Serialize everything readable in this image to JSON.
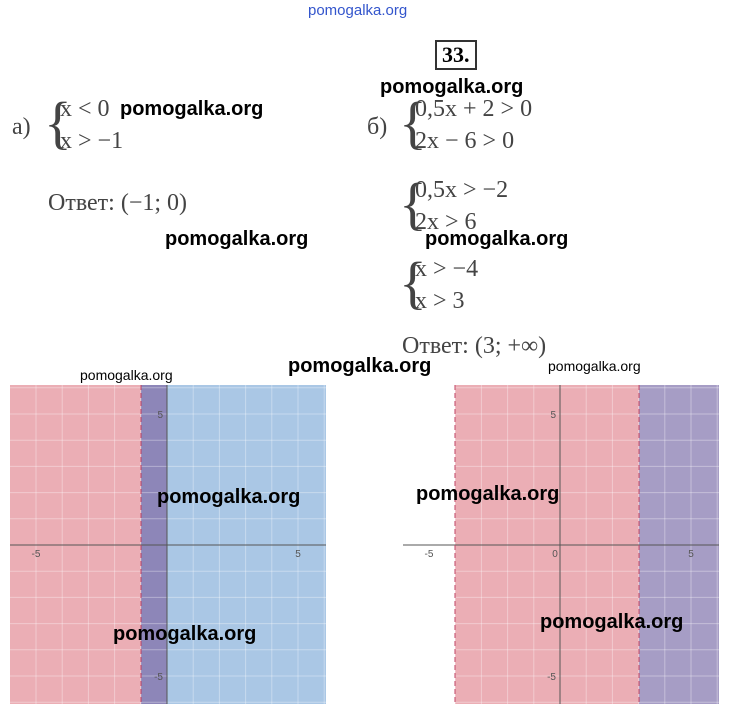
{
  "header": {
    "site": "pomogalka.org",
    "number": "33."
  },
  "part_a": {
    "label": "а)",
    "system": [
      "x < 0",
      "x > −1"
    ],
    "answer": "Ответ: (−1; 0)"
  },
  "part_b": {
    "label": "б)",
    "systems": [
      [
        "0,5x + 2 > 0",
        "2x − 6 > 0"
      ],
      [
        "0,5x > −2",
        "2x > 6"
      ],
      [
        "x > −4",
        "x > 3"
      ]
    ],
    "answer": "Ответ: (3; +∞)"
  },
  "watermarks": [
    "pomogalka.org",
    "pomogalka.org",
    "pomogalka.org",
    "pomogalka.org",
    "pomogalka.org",
    "pomogalka.org",
    "pomogalka.org",
    "pomogalka.org",
    "pomogalka.org",
    "pomogalka.org",
    "pomogalka.org"
  ],
  "graphs": [
    {
      "x_labels": [
        "-5",
        "5"
      ],
      "y_labels": [
        "5",
        "-5"
      ]
    },
    {
      "x_labels": [
        "-5",
        "0",
        "5"
      ],
      "y_labels": [
        "5",
        "-5"
      ]
    }
  ]
}
